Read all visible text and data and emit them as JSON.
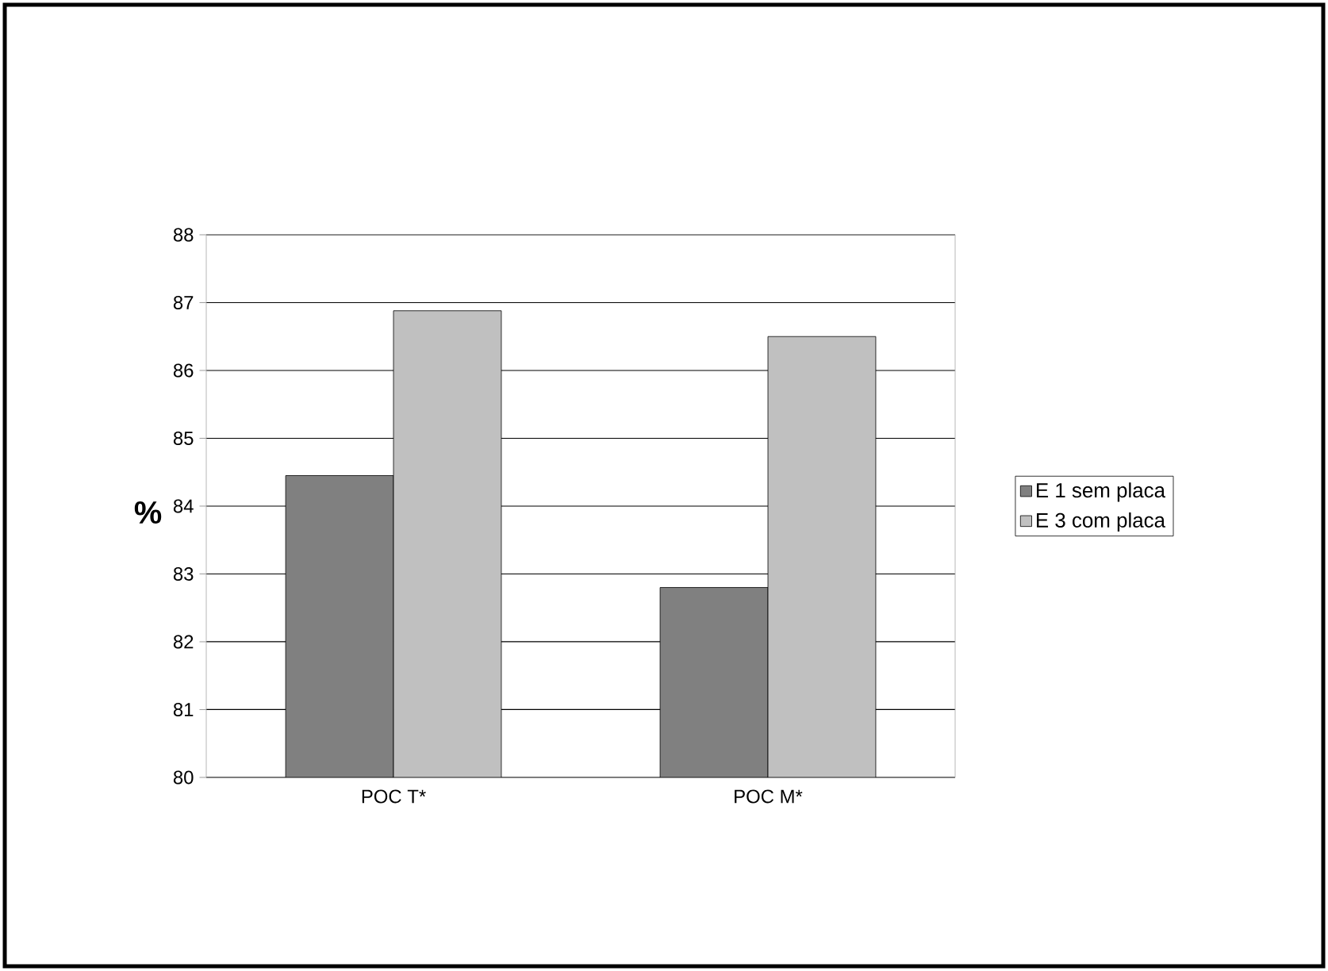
{
  "chart_data": {
    "type": "bar",
    "ylabel": "**%**",
    "categories": [
      "POC T*",
      "POC M*"
    ],
    "series": [
      {
        "name": "E 1 sem placa",
        "color": "#808080",
        "values": [
          84.45,
          82.8
        ]
      },
      {
        "name": "E 3 com placa",
        "color": "#c0c0c0",
        "values": [
          86.88,
          86.5
        ]
      }
    ],
    "ylim": [
      80,
      88
    ],
    "yticks": [
      80,
      81,
      82,
      83,
      84,
      85,
      86,
      87,
      88
    ],
    "grid": "y",
    "legend": "right"
  }
}
